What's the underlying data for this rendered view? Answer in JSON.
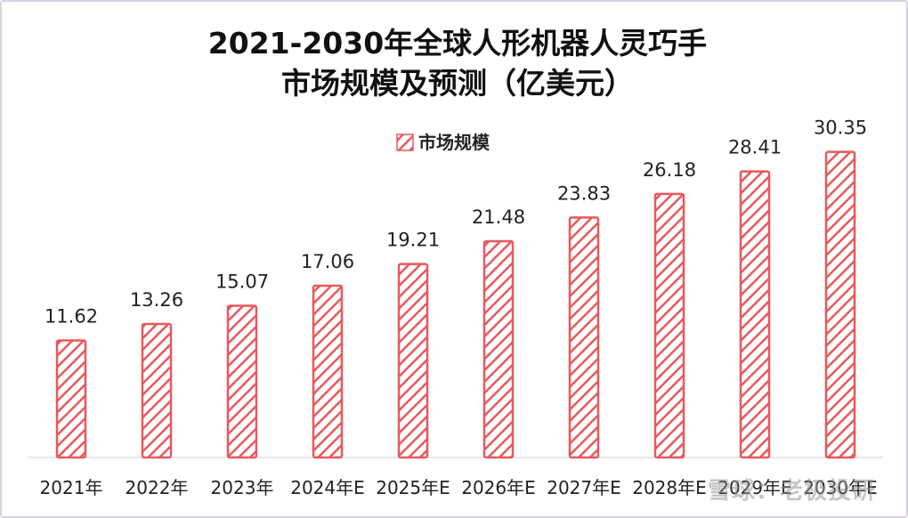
{
  "chart_data": {
    "type": "bar",
    "title_line1": "2021-2030年全球人形机器人灵巧手",
    "title_line2": "市场规模及预测（亿美元）",
    "xlabel": "",
    "ylabel": "",
    "ylim": [
      0,
      32
    ],
    "grid": false,
    "legend_position": "top-center",
    "categories": [
      "2021年",
      "2022年",
      "2023年",
      "2024年E",
      "2025年E",
      "2026年E",
      "2027年E",
      "2028年E",
      "2029年E",
      "2030年E"
    ],
    "series": [
      {
        "name": "市场规模",
        "values": [
          11.62,
          13.26,
          15.07,
          17.06,
          19.21,
          21.48,
          23.83,
          26.18,
          28.41,
          30.35
        ]
      }
    ],
    "data_labels": [
      "11.62",
      "13.26",
      "15.07",
      "17.06",
      "19.21",
      "21.48",
      "23.83",
      "26.18",
      "28.41",
      "30.35"
    ]
  },
  "colors": {
    "bar_stroke": "#e8595b",
    "bar_fill": "#ffffff",
    "hatch": "#e8595b",
    "title": "#111111",
    "label": "#222222"
  },
  "watermark": "雪球：老极投研"
}
